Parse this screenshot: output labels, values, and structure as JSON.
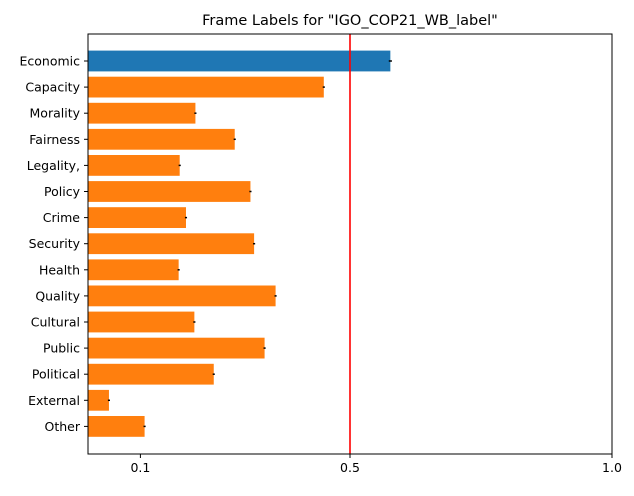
{
  "chart_data": {
    "type": "bar",
    "orientation": "horizontal",
    "title": "Frame Labels for \"IGO_COP21_WB_label\"",
    "xlabel": "",
    "ylabel": "",
    "categories": [
      "Economic",
      "Capacity",
      "Morality",
      "Fairness",
      "Legality,",
      "Policy",
      "Crime",
      "Security",
      "Health",
      "Quality",
      "Cultural",
      "Public",
      "Political",
      "External",
      "Other"
    ],
    "values": [
      0.577,
      0.45,
      0.205,
      0.28,
      0.175,
      0.31,
      0.187,
      0.317,
      0.173,
      0.358,
      0.203,
      0.337,
      0.24,
      0.04,
      0.108
    ],
    "error": [
      0.003,
      0.002,
      0.002,
      0.002,
      0.002,
      0.002,
      0.002,
      0.002,
      0.002,
      0.002,
      0.002,
      0.002,
      0.002,
      0.002,
      0.002
    ],
    "bar_colors": [
      "#1f77b4",
      "#ff7f0e",
      "#ff7f0e",
      "#ff7f0e",
      "#ff7f0e",
      "#ff7f0e",
      "#ff7f0e",
      "#ff7f0e",
      "#ff7f0e",
      "#ff7f0e",
      "#ff7f0e",
      "#ff7f0e",
      "#ff7f0e",
      "#ff7f0e",
      "#ff7f0e"
    ],
    "x_ticks": [
      {
        "value": 0.1,
        "label": "0.1"
      },
      {
        "value": 0.5,
        "label": "0.5"
      },
      {
        "value": 1.0,
        "label": "1.0"
      }
    ],
    "xlim": [
      0.0,
      1.0
    ],
    "reference_line": {
      "value": 0.5,
      "color": "#ff0000"
    },
    "grid": false
  }
}
